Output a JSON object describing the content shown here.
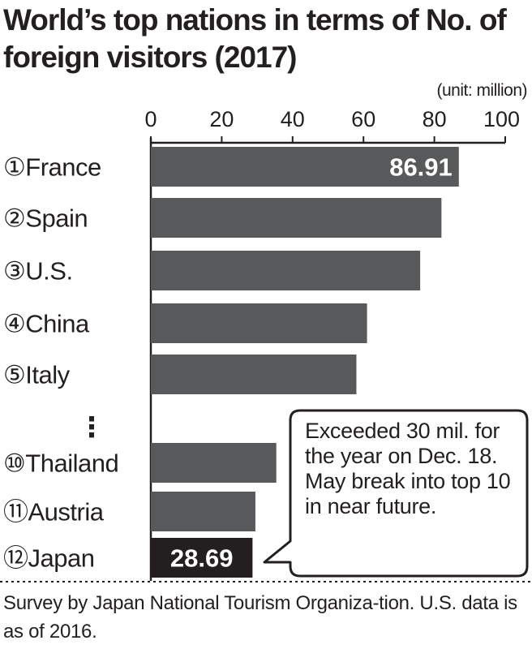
{
  "title": "World’s top nations in terms of No. of foreign visitors (2017)",
  "unit_label": "(unit: million)",
  "footnote": "Survey by Japan National Tourism Organiza-tion. U.S. data is as of 2016.",
  "callout": "Exceeded 30 mil. for the year on Dec. 18. May break into top 10 in near future.",
  "colors": {
    "bar": "#58595b",
    "highlight_bar": "#231f20",
    "text": "#231f20",
    "label_on_bar": "#ffffff"
  },
  "chart_data": {
    "type": "bar",
    "orientation": "horizontal",
    "title": "World’s top nations in terms of No. of foreign visitors (2017)",
    "unit": "(unit: million)",
    "xlim": [
      0,
      100
    ],
    "x_ticks": [
      "0",
      "20",
      "40",
      "60",
      "80",
      "100"
    ],
    "grid": false,
    "categories": [
      "①France",
      "②Spain",
      "③U.S.",
      "④China",
      "⑤Italy",
      "⑩Thailand",
      "⑪Austria",
      "⑫Japan"
    ],
    "values": [
      86.91,
      82,
      76,
      61,
      58,
      35.4,
      29.5,
      28.69
    ],
    "data_labels": [
      "86.91",
      "",
      "",
      "",
      "",
      "",
      "",
      "28.69"
    ],
    "highlight": "⑫Japan",
    "gap_marker": "⋮"
  }
}
